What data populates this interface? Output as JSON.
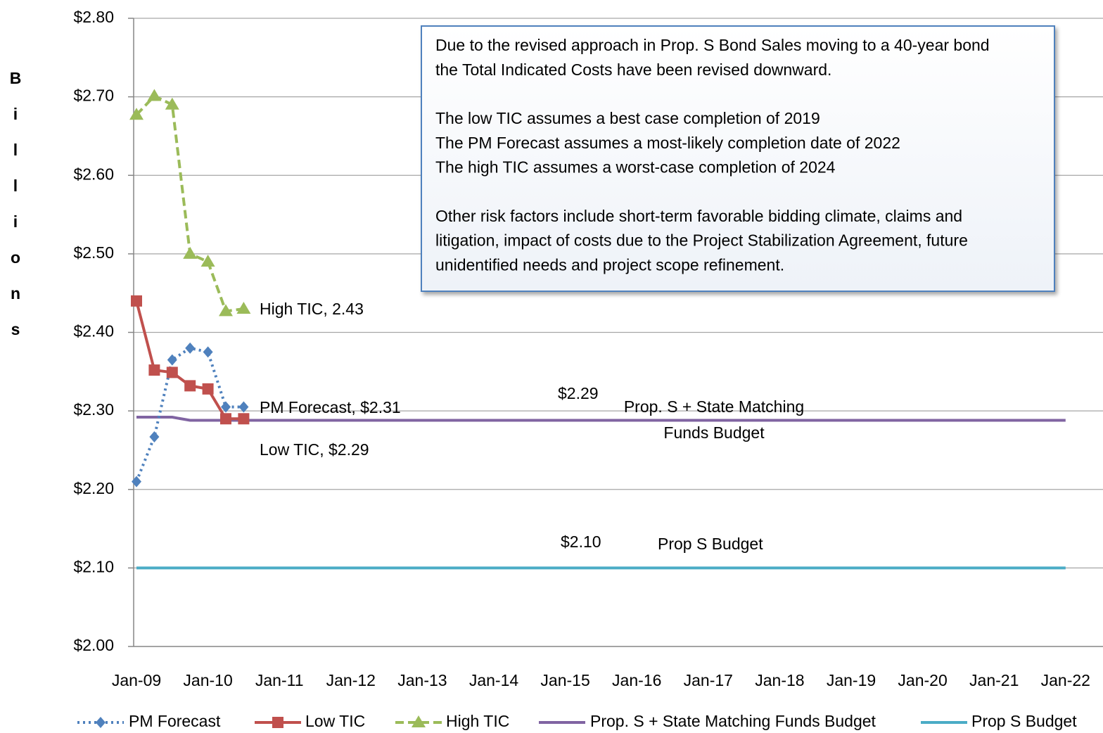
{
  "chart_data": {
    "type": "line",
    "y_label": "Billions",
    "categories": [
      "Jan-09",
      null,
      null,
      null,
      "Jan-10",
      null,
      null,
      null,
      "Jan-11",
      null,
      null,
      null,
      "Jan-12",
      null,
      null,
      null,
      "Jan-13",
      null,
      null,
      null,
      "Jan-14",
      null,
      null,
      null,
      "Jan-15",
      null,
      null,
      null,
      "Jan-16",
      null,
      null,
      null,
      "Jan-17",
      null,
      null,
      null,
      "Jan-18",
      null,
      null,
      null,
      "Jan-19",
      null,
      null,
      null,
      "Jan-20",
      null,
      null,
      null,
      "Jan-21",
      null,
      null,
      null,
      "Jan-22"
    ],
    "ylim": [
      2.0,
      2.8
    ],
    "yticks": [
      {
        "value": 2.0,
        "label": "$2.00"
      },
      {
        "value": 2.1,
        "label": "$2.10"
      },
      {
        "value": 2.2,
        "label": "$2.20"
      },
      {
        "value": 2.3,
        "label": "$2.30"
      },
      {
        "value": 2.4,
        "label": "$2.40"
      },
      {
        "value": 2.5,
        "label": "$2.50"
      },
      {
        "value": 2.6,
        "label": "$2.60"
      },
      {
        "value": 2.7,
        "label": "$2.70"
      },
      {
        "value": 2.8,
        "label": "$2.80"
      }
    ],
    "grid": true,
    "legend": "bottom",
    "series": [
      {
        "name": "PM Forecast",
        "color": "#4f81bd",
        "dash": "dotted",
        "marker": "diamond",
        "values": [
          2.21,
          2.267,
          2.365,
          2.38,
          2.375,
          2.305,
          2.305,
          null,
          null,
          null,
          null,
          null,
          null,
          null,
          null,
          null,
          null,
          null,
          null,
          null,
          null,
          null,
          null,
          null,
          null,
          null,
          null,
          null,
          null,
          null,
          null,
          null,
          null,
          null,
          null,
          null,
          null,
          null,
          null,
          null,
          null,
          null,
          null,
          null,
          null,
          null,
          null,
          null,
          null,
          null,
          null,
          null,
          null
        ]
      },
      {
        "name": "Low TIC",
        "color": "#c0504d",
        "dash": "solid",
        "marker": "square",
        "values": [
          2.44,
          2.352,
          2.349,
          2.332,
          2.328,
          2.29,
          2.29,
          null,
          null,
          null,
          null,
          null,
          null,
          null,
          null,
          null,
          null,
          null,
          null,
          null,
          null,
          null,
          null,
          null,
          null,
          null,
          null,
          null,
          null,
          null,
          null,
          null,
          null,
          null,
          null,
          null,
          null,
          null,
          null,
          null,
          null,
          null,
          null,
          null,
          null,
          null,
          null,
          null,
          null,
          null,
          null,
          null,
          null
        ]
      },
      {
        "name": "High TIC",
        "color": "#9bbb59",
        "dash": "dashed",
        "marker": "triangle",
        "values": [
          2.677,
          2.701,
          2.69,
          2.5,
          2.49,
          2.427,
          2.43,
          null,
          null,
          null,
          null,
          null,
          null,
          null,
          null,
          null,
          null,
          null,
          null,
          null,
          null,
          null,
          null,
          null,
          null,
          null,
          null,
          null,
          null,
          null,
          null,
          null,
          null,
          null,
          null,
          null,
          null,
          null,
          null,
          null,
          null,
          null,
          null,
          null,
          null,
          null,
          null,
          null,
          null,
          null,
          null,
          null,
          null
        ]
      },
      {
        "name": "Prop. S + State Matching Funds Budget",
        "color": "#8064a2",
        "dash": "solid",
        "marker": "none",
        "values": [
          2.292,
          2.292,
          2.292,
          2.288,
          2.288,
          2.288,
          2.288,
          2.288,
          2.288,
          2.288,
          2.288,
          2.288,
          2.288,
          2.288,
          2.288,
          2.288,
          2.288,
          2.288,
          2.288,
          2.288,
          2.288,
          2.288,
          2.288,
          2.288,
          2.288,
          2.288,
          2.288,
          2.288,
          2.288,
          2.288,
          2.288,
          2.288,
          2.288,
          2.288,
          2.288,
          2.288,
          2.288,
          2.288,
          2.288,
          2.288,
          2.288,
          2.288,
          2.288,
          2.288,
          2.288,
          2.288,
          2.288,
          2.288,
          2.288,
          2.288,
          2.288,
          2.288,
          2.288
        ]
      },
      {
        "name": "Prop S Budget",
        "color": "#4bacc6",
        "dash": "solid",
        "marker": "none",
        "values": [
          2.1,
          2.1,
          2.1,
          2.1,
          2.1,
          2.1,
          2.1,
          2.1,
          2.1,
          2.1,
          2.1,
          2.1,
          2.1,
          2.1,
          2.1,
          2.1,
          2.1,
          2.1,
          2.1,
          2.1,
          2.1,
          2.1,
          2.1,
          2.1,
          2.1,
          2.1,
          2.1,
          2.1,
          2.1,
          2.1,
          2.1,
          2.1,
          2.1,
          2.1,
          2.1,
          2.1,
          2.1,
          2.1,
          2.1,
          2.1,
          2.1,
          2.1,
          2.1,
          2.1,
          2.1,
          2.1,
          2.1,
          2.1,
          2.1,
          2.1,
          2.1,
          2.1,
          2.1
        ]
      }
    ],
    "annotations": [
      "High TIC, 2.43",
      "PM Forecast, $2.31",
      "Low TIC, $2.29",
      "$2.29",
      [
        "Prop. S + State Matching",
        "Funds Budget"
      ],
      "$2.10",
      "Prop S Budget"
    ],
    "note": [
      [
        "Due to the revised approach in Prop. S Bond Sales moving to a 40-year bond",
        "the Total Indicated Costs have been revised downward."
      ],
      [
        "The low TIC assumes a best case completion of 2019",
        "The PM Forecast assumes a most-likely completion date of 2022",
        "The high TIC assumes a worst-case completion of 2024"
      ],
      [
        "Other risk factors include short-term favorable bidding climate, claims and",
        "litigation, impact of costs due to the Project Stabilization Agreement, future",
        "unidentified needs and project scope refinement."
      ]
    ]
  }
}
